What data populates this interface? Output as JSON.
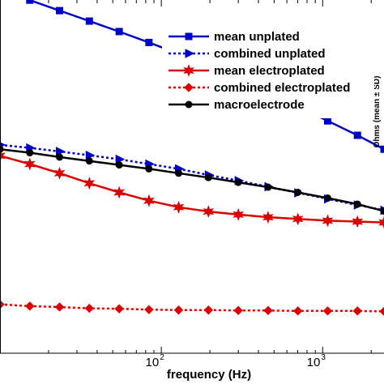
{
  "chart_data": {
    "type": "line",
    "xlabel": "frequency (Hz)",
    "ylabel": "Ohms (mean ± SD)",
    "xscale": "log",
    "xlim": [
      10,
      2400
    ],
    "ylim": [
      0,
      100
    ],
    "grid": false,
    "legend_position": "top-right",
    "x_ticks": [
      {
        "value": 100,
        "base": "10",
        "exp": "2"
      },
      {
        "value": 1000,
        "base": "10",
        "exp": "3"
      }
    ],
    "x": [
      10,
      15.3,
      23.4,
      35.8,
      54.8,
      83.8,
      128,
      196,
      300,
      459,
      702,
      1074,
      1643,
      2400
    ],
    "series": [
      {
        "name": "mean unplated",
        "color": "#0000cc",
        "line": "solid",
        "marker": "square",
        "values": [
          83.6,
          81.0,
          78.6,
          76.2,
          73.8,
          71.3,
          68.7,
          65.9,
          62.9,
          59.8,
          56.6,
          53.3,
          50.0,
          46.8
        ]
      },
      {
        "name": "combined unplated",
        "color": "#0000cc",
        "line": "dotted",
        "marker": "triangle-right",
        "values": [
          47.8,
          47.1,
          46.3,
          45.4,
          44.5,
          43.4,
          42.3,
          40.9,
          39.6,
          38.2,
          36.8,
          35.4,
          34.0,
          32.8
        ]
      },
      {
        "name": "mean electroplated",
        "color": "#dd0000",
        "line": "solid",
        "marker": "star",
        "values": [
          45.3,
          43.4,
          41.3,
          39.0,
          36.9,
          35.0,
          33.5,
          32.5,
          31.8,
          31.2,
          30.8,
          30.4,
          30.2,
          30.0
        ]
      },
      {
        "name": "combined electroplated",
        "color": "#dd0000",
        "line": "dotted",
        "marker": "diamond",
        "values": [
          11.2,
          10.8,
          10.6,
          10.3,
          10.2,
          10.0,
          9.9,
          9.9,
          9.8,
          9.8,
          9.7,
          9.7,
          9.7,
          9.6
        ]
      },
      {
        "name": "macroelectrode",
        "color": "#000000",
        "line": "solid",
        "marker": "circle",
        "values": [
          46.8,
          46.0,
          45.0,
          44.1,
          43.2,
          42.3,
          41.3,
          40.3,
          39.2,
          38.1,
          36.9,
          35.6,
          34.2,
          32.6
        ]
      }
    ]
  }
}
